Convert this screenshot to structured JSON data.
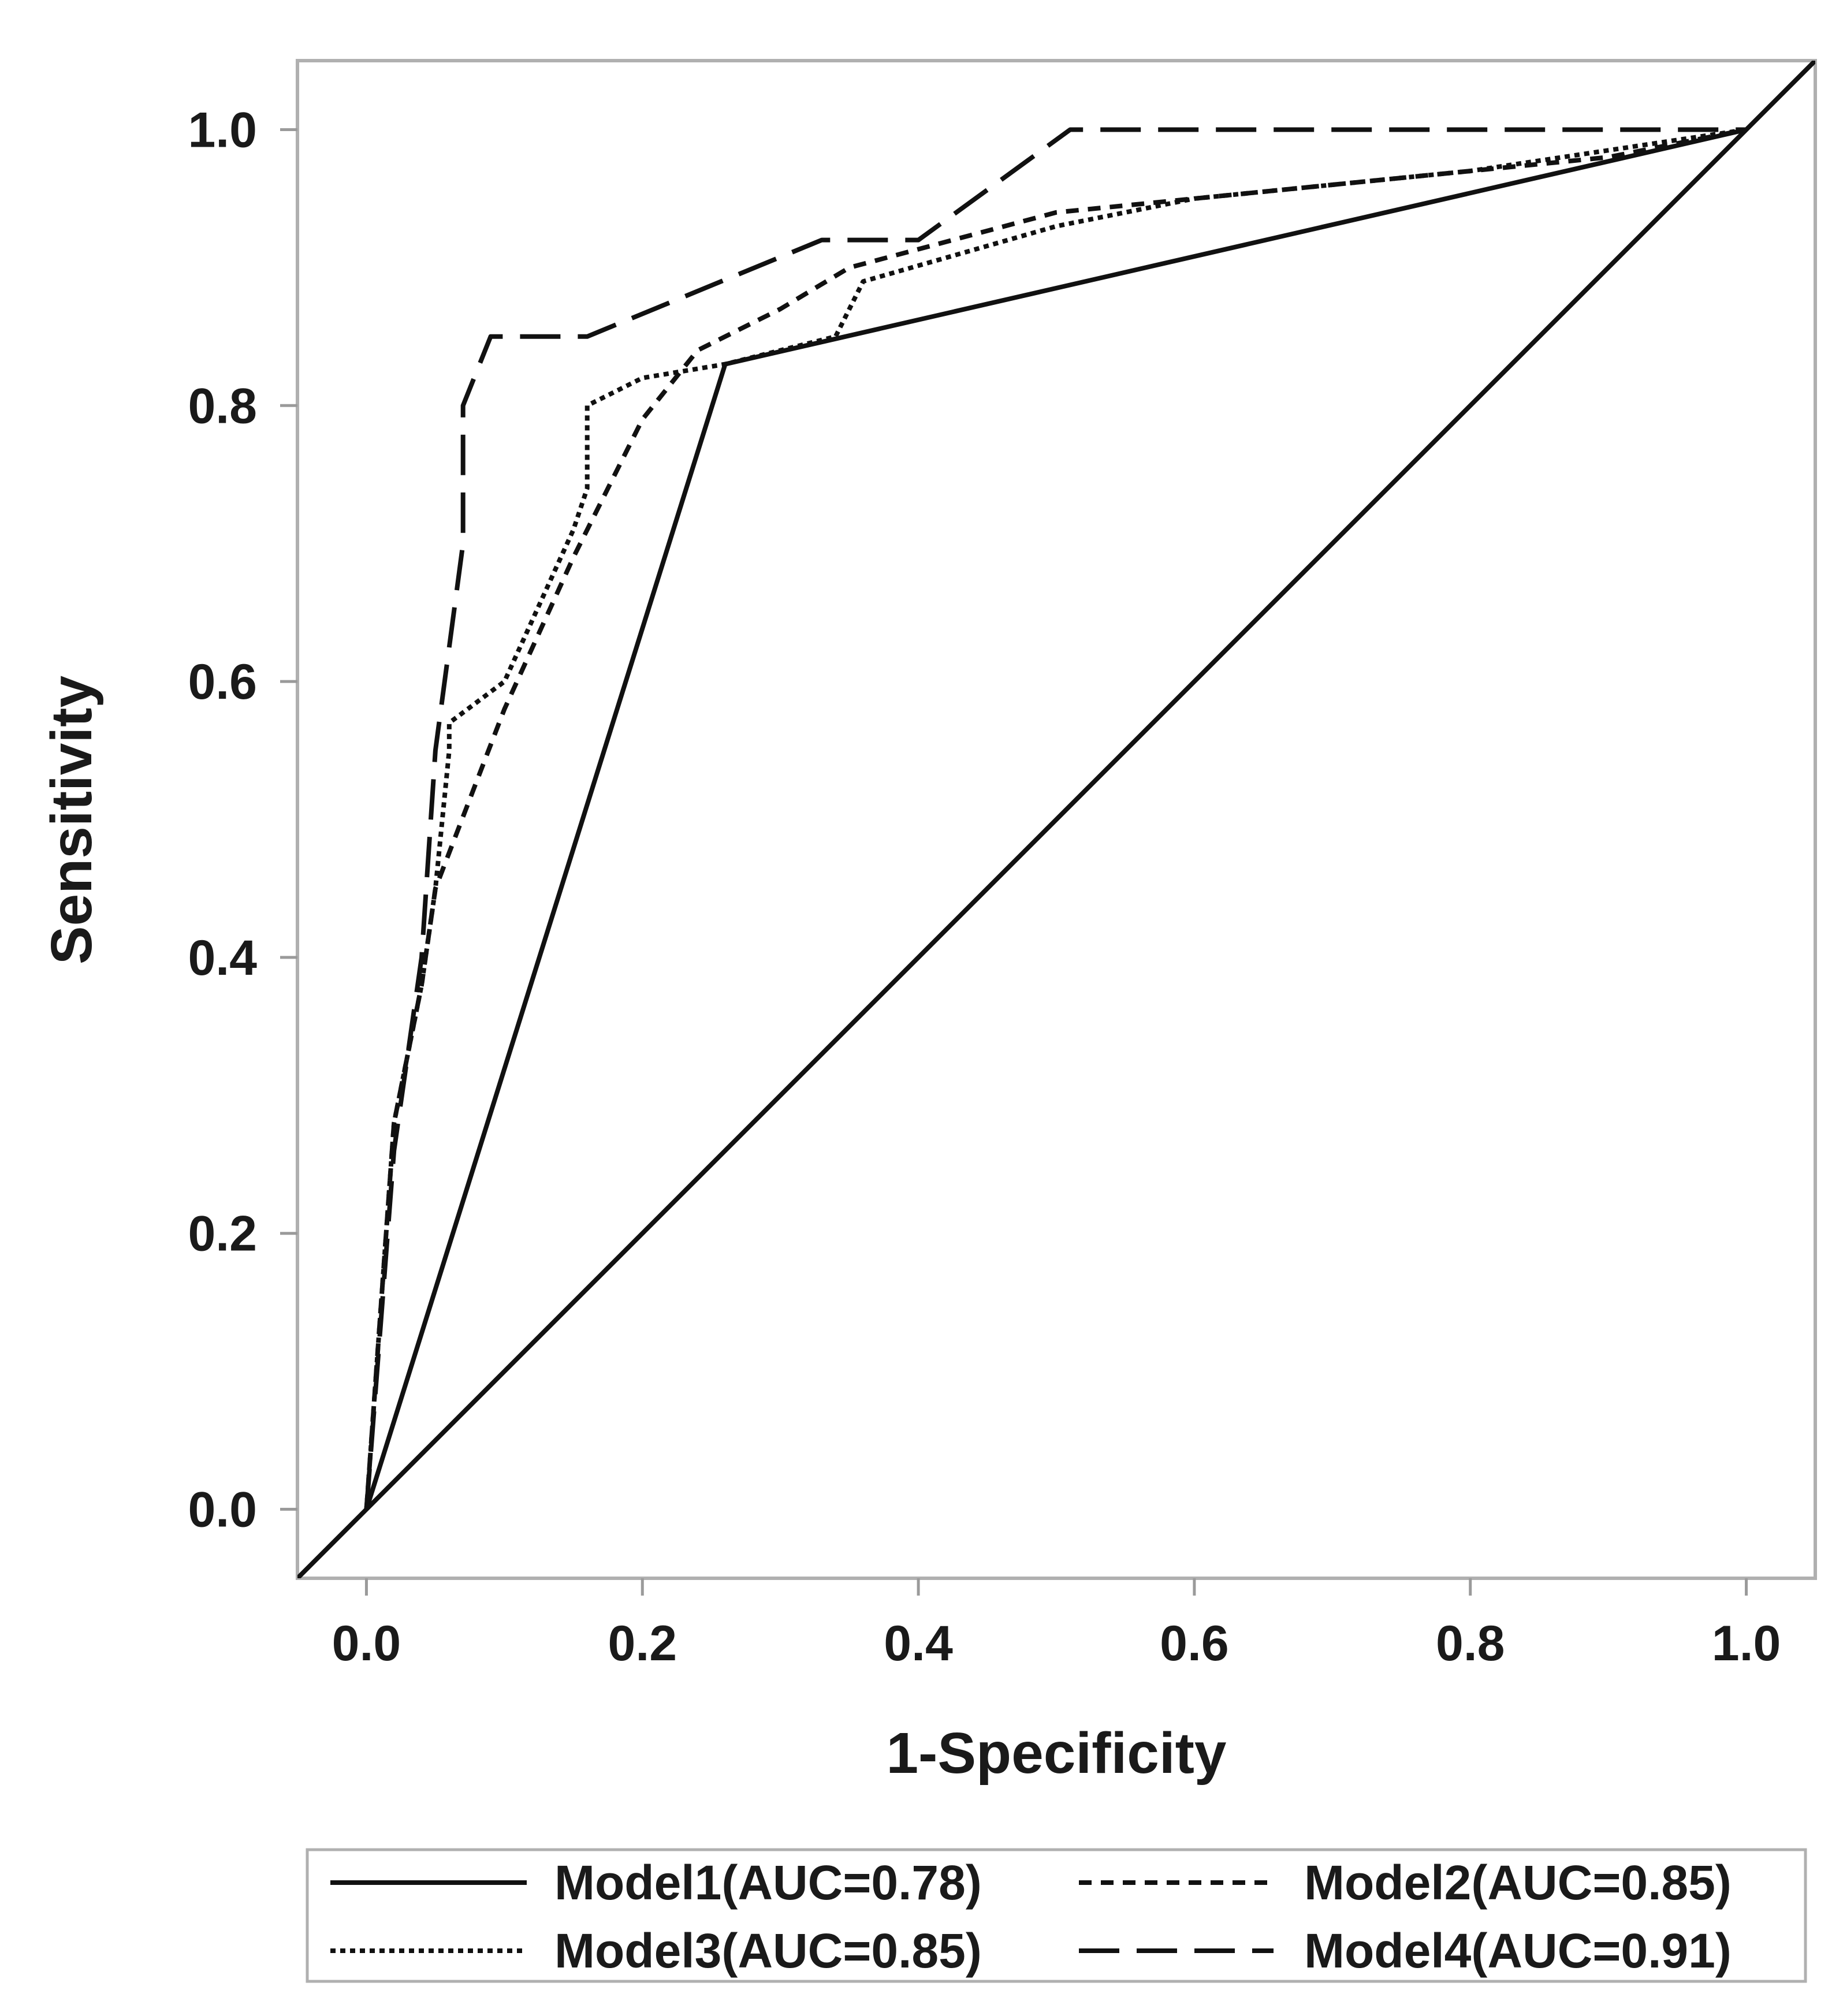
{
  "chart_data": {
    "type": "line",
    "title": "",
    "xlabel": "1-Specificity",
    "ylabel": "Sensitivity",
    "xlim": [
      -0.05,
      1.05
    ],
    "ylim": [
      -0.05,
      1.05
    ],
    "xticks": [
      "0.0",
      "0.2",
      "0.4",
      "0.6",
      "0.8",
      "1.0"
    ],
    "yticks": [
      "0.0",
      "0.2",
      "0.4",
      "0.6",
      "0.8",
      "1.0"
    ],
    "grid": false,
    "legend_position": "bottom",
    "reference_line": {
      "name": "diagonal",
      "x": [
        -0.05,
        1.05
      ],
      "y": [
        -0.05,
        1.05
      ]
    },
    "series": [
      {
        "name": "Model1(AUC=0.78)",
        "style": "solid",
        "x": [
          0.0,
          0.26,
          1.0
        ],
        "y": [
          0.0,
          0.83,
          1.0
        ]
      },
      {
        "name": "Model2(AUC=0.85)",
        "style": "short-dash",
        "x": [
          0.0,
          0.02,
          0.04,
          0.05,
          0.1,
          0.15,
          0.2,
          0.24,
          0.3,
          0.35,
          0.5,
          0.7,
          0.9,
          1.0
        ],
        "y": [
          0.0,
          0.28,
          0.38,
          0.45,
          0.58,
          0.69,
          0.79,
          0.84,
          0.87,
          0.9,
          0.94,
          0.96,
          0.98,
          1.0
        ]
      },
      {
        "name": "Model3(AUC=0.85)",
        "style": "dotted",
        "x": [
          0.0,
          0.02,
          0.04,
          0.05,
          0.06,
          0.06,
          0.1,
          0.15,
          0.16,
          0.16,
          0.2,
          0.26,
          0.34,
          0.36,
          0.5,
          0.6,
          0.8,
          1.0
        ],
        "y": [
          0.0,
          0.28,
          0.38,
          0.45,
          0.55,
          0.57,
          0.6,
          0.71,
          0.74,
          0.8,
          0.82,
          0.83,
          0.85,
          0.89,
          0.93,
          0.95,
          0.97,
          1.0
        ]
      },
      {
        "name": "Model4(AUC=0.91)",
        "style": "long-dash",
        "x": [
          0.0,
          0.02,
          0.04,
          0.05,
          0.07,
          0.07,
          0.09,
          0.16,
          0.33,
          0.4,
          0.51,
          0.52,
          1.0
        ],
        "y": [
          0.0,
          0.26,
          0.4,
          0.55,
          0.7,
          0.8,
          0.85,
          0.85,
          0.92,
          0.92,
          1.0,
          1.0,
          1.0
        ]
      }
    ]
  }
}
